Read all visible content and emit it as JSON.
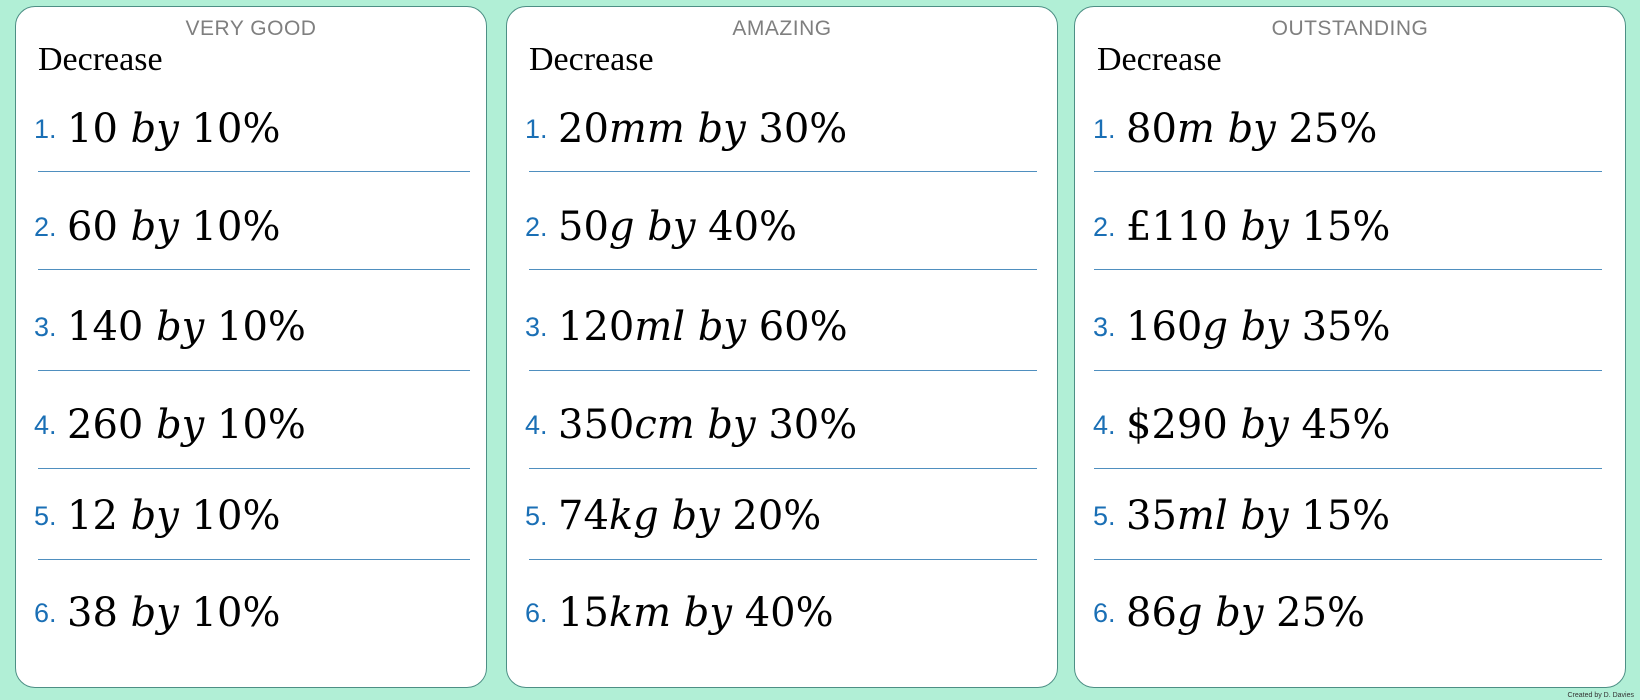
{
  "cards": [
    {
      "level": "VERY GOOD",
      "heading": "Decrease",
      "questions": [
        {
          "number": "1.",
          "amount": "10",
          "unit": "",
          "by": "by",
          "percent": "10%"
        },
        {
          "number": "2.",
          "amount": "60",
          "unit": "",
          "by": "by",
          "percent": "10%"
        },
        {
          "number": "3.",
          "amount": "140",
          "unit": "",
          "by": "by",
          "percent": "10%"
        },
        {
          "number": "4.",
          "amount": "260",
          "unit": "",
          "by": "by",
          "percent": "10%"
        },
        {
          "number": "5.",
          "amount": "12",
          "unit": "",
          "by": "by",
          "percent": "10%"
        },
        {
          "number": "6.",
          "amount": "38",
          "unit": "",
          "by": "by",
          "percent": "10%"
        }
      ]
    },
    {
      "level": "AMAZING",
      "heading": "Decrease",
      "questions": [
        {
          "number": "1.",
          "amount": "20",
          "unit": "mm",
          "by": "by",
          "percent": "30%"
        },
        {
          "number": "2.",
          "amount": "50",
          "unit": "g",
          "by": "by",
          "percent": "40%"
        },
        {
          "number": "3.",
          "amount": "120",
          "unit": "ml",
          "by": "by",
          "percent": "60%"
        },
        {
          "number": "4.",
          "amount": "350",
          "unit": "cm",
          "by": "by",
          "percent": "30%"
        },
        {
          "number": "5.",
          "amount": "74",
          "unit": "kg",
          "by": "by",
          "percent": "20%"
        },
        {
          "number": "6.",
          "amount": "15",
          "unit": "km",
          "by": "by",
          "percent": "40%"
        }
      ]
    },
    {
      "level": "OUTSTANDING",
      "heading": "Decrease",
      "questions": [
        {
          "number": "1.",
          "amount": "80",
          "unit": "m",
          "by": "by",
          "percent": "25%"
        },
        {
          "number": "2.",
          "amount": "£110",
          "unit": "",
          "by": "by",
          "percent": "15%"
        },
        {
          "number": "3.",
          "amount": "160",
          "unit": "g",
          "by": "by",
          "percent": "35%"
        },
        {
          "number": "4.",
          "amount": "$290",
          "unit": "",
          "by": "by",
          "percent": "45%"
        },
        {
          "number": "5.",
          "amount": "35",
          "unit": "ml",
          "by": "by",
          "percent": "15%"
        },
        {
          "number": "6.",
          "amount": "86",
          "unit": "g",
          "by": "by",
          "percent": "25%"
        }
      ]
    }
  ],
  "credit": "Created by D. Davies"
}
